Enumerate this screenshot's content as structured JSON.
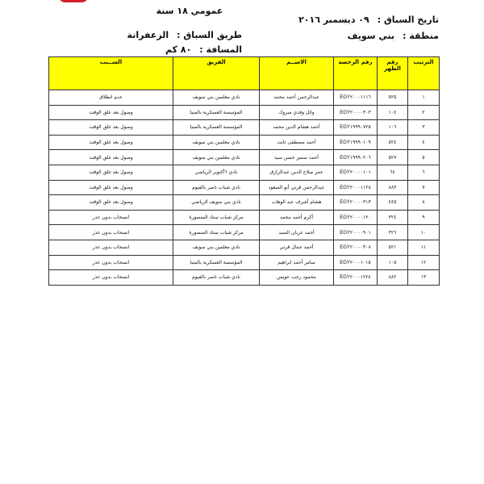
{
  "header": {
    "title": "عمومي ١٨ سنة",
    "date_label": "تاريخ السباق :",
    "date_value": "٠٩ ديسمبر ٢٠١٦",
    "region_label": "منطقة :",
    "region_value": "بني سويف",
    "route_label": "طريق السباق :",
    "route_value": "الزعفرانة",
    "distance_label": "المسافة :",
    "distance_value": "٨٠ كم"
  },
  "colors": {
    "header_fill": "#ffff00",
    "logo": "#d0202a"
  },
  "table": {
    "columns": [
      "الترتيب",
      "رقم الظهر",
      "رقم الرخصة",
      "الاســم",
      "الفريق",
      "الســبب"
    ],
    "rows": [
      [
        "١",
        "٥٢٥",
        "EGY٢٠٠٠١١١٦",
        "عبدالرحمن أحمد محمد",
        "نادي معلمين بني سويف",
        "عدم انطلاق"
      ],
      [
        "٢",
        "١٠٤",
        "EGY٢٠٠٠٠٣٠٣",
        "وائل وفدي مبروك",
        "المؤسسة العسكرية بالمنيا",
        "وصول بعد غلق الوقت"
      ],
      [
        "٣",
        "١٠٦",
        "EGY١٩٩٩٠٧٢٥",
        "أحمد هشام الدين محمد",
        "المؤسسة العسكرية بالمنيا",
        "وصول بعد غلق الوقت"
      ],
      [
        "٤",
        "٥٢٤",
        "EGY١٩٩٩٠١٠٩",
        "أحمد مصطفى ثابت",
        "نادي معلمين بني سويف",
        "وصول بعد غلق الوقت"
      ],
      [
        "٥",
        "٥٢٧",
        "EGY١٩٩٩٠٢٠٦",
        "أحمد سمير حسن سيد",
        "نادي معلمين بني سويف",
        "وصول بعد غلق الوقت"
      ],
      [
        "٦",
        "٦٤",
        "EGY٢٠٠٠٠١٠١",
        "عمر صلاح الدين عبدالرازق",
        "نادي ٦أكتوبر الرياضي",
        "وصول بعد غلق الوقت"
      ],
      [
        "٧",
        "٨٨٣",
        "EGY٢٠٠٠١١٢٨",
        "عبدالرحمن قرني أبو السعود",
        "نادي شباب ناصر بالفيوم",
        "وصول بعد غلق الوقت"
      ],
      [
        "٨",
        "٤٤٥",
        "EGY٢٠٠٠٠٣١٣",
        "هشام أشرف عبد الوهاب",
        "نادي بني سويف الرياضي",
        "وصول بعد غلق الوقت"
      ],
      [
        "٩",
        "٣٢٤",
        "EGY٢٠٠٠٠١٢٠",
        "أكرم أحمد محمد",
        "مركز شباب ستاد المنصورة",
        "انسحاب بدون عذر"
      ],
      [
        "١٠",
        "٣٢٦",
        "EGY٢٠٠٠٠٩٠١",
        "أحمد عربان السيد",
        "مركز شباب ستاد المنصورة",
        "انسحاب بدون عذر"
      ],
      [
        "١١",
        "٥٢١",
        "EGY٢٠٠٠٠٣٠٨",
        "أحمد جمال قرني",
        "نادي معلمين بني سويف",
        "انسحاب بدون عذر"
      ],
      [
        "١٢",
        "١٠٥",
        "EGY٢٠٠٠١٠١٥",
        "سامر أحمد ابراهيم",
        "المؤسسة العسكرية بالمنيا",
        "انسحاب بدون عذر"
      ],
      [
        "١٣",
        "٨٨٢",
        "EGY٢٠٠٠١٢٢٤",
        "محمود رجب عويس",
        "نادي شباب ناصر بالفيوم",
        "انسحاب بدون عذر"
      ]
    ]
  }
}
